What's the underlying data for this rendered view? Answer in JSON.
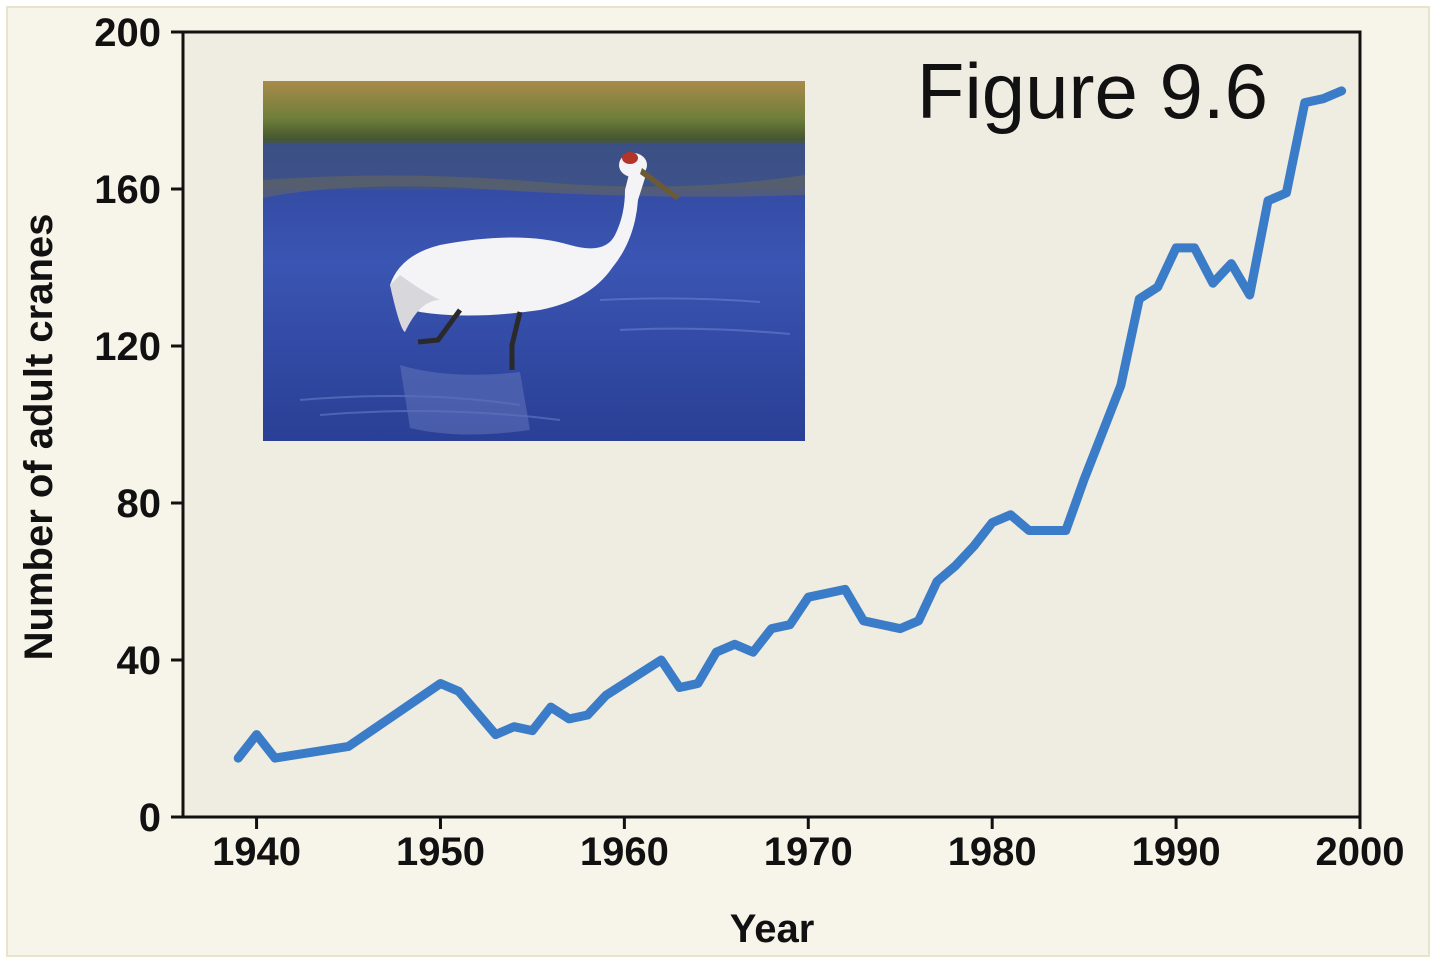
{
  "chart_data": {
    "type": "line",
    "title": "Figure 9.6",
    "xlabel": "Year",
    "ylabel": "Number of adult cranes",
    "xlim": [
      1936,
      2000
    ],
    "ylim": [
      0,
      200
    ],
    "x_ticks": [
      1940,
      1950,
      1960,
      1970,
      1980,
      1990,
      2000
    ],
    "y_ticks": [
      0,
      40,
      80,
      120,
      160,
      200
    ],
    "x_tick_labels": [
      "1940",
      "1950",
      "1960",
      "1970",
      "1980",
      "1990",
      "2000"
    ],
    "y_tick_labels": [
      "0",
      "40",
      "80",
      "120",
      "160",
      "200"
    ],
    "grid": false,
    "line_color": "#3a7cc8",
    "plot_background": "#efece1",
    "inset_image": "whooping-crane-photo",
    "series": [
      {
        "x": [
          1939,
          1940,
          1941,
          1945,
          1950,
          1951,
          1953,
          1954,
          1955,
          1956,
          1957,
          1958,
          1959,
          1962,
          1963,
          1964,
          1965,
          1966,
          1967,
          1968,
          1969,
          1970,
          1971,
          1972,
          1973,
          1975,
          1976,
          1977,
          1978,
          1979,
          1980,
          1981,
          1982,
          1983,
          1984,
          1985,
          1986,
          1987,
          1988,
          1989,
          1990,
          1991,
          1992,
          1993,
          1994,
          1995,
          1996,
          1997,
          1998,
          1999
        ],
        "y": [
          15,
          21,
          15,
          18,
          34,
          32,
          21,
          23,
          22,
          28,
          25,
          26,
          31,
          40,
          33,
          34,
          42,
          44,
          42,
          48,
          49,
          56,
          57,
          58,
          50,
          48,
          50,
          60,
          64,
          69,
          75,
          77,
          73,
          73,
          73,
          86,
          98,
          110,
          132,
          135,
          145,
          145,
          136,
          141,
          133,
          157,
          159,
          182,
          183,
          185
        ]
      }
    ]
  }
}
